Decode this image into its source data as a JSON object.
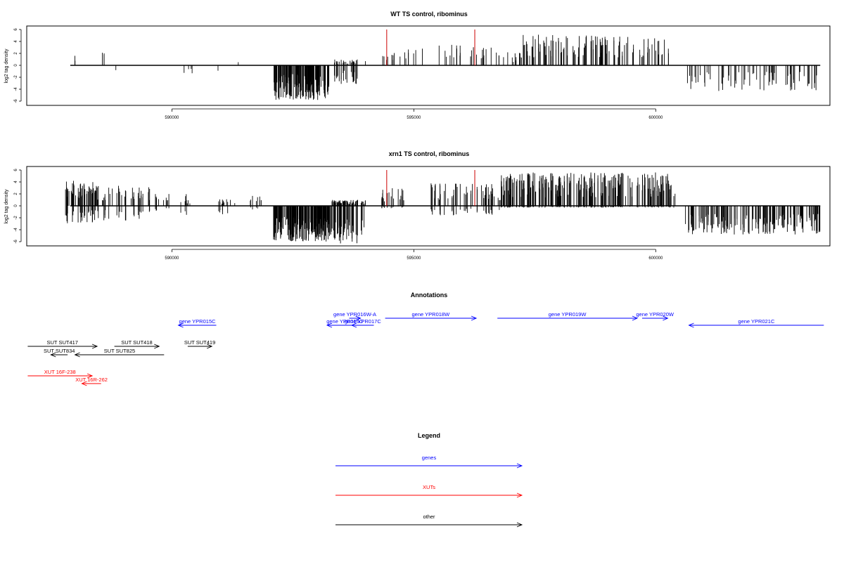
{
  "panels": [
    {
      "title": "WT TS control, ribominus",
      "ylabel": "log2 tag density",
      "yticks": [
        "6",
        "4",
        "2",
        "0",
        "-2",
        "-4",
        "-6"
      ],
      "xticks": [
        "590000",
        "595000",
        "600000"
      ]
    },
    {
      "title": "xrn1 TS control, ribominus",
      "ylabel": "log2 tag density",
      "yticks": [
        "6",
        "4",
        "2",
        "0",
        "-2",
        "-4",
        "-6"
      ],
      "xticks": [
        "590000",
        "595000",
        "600000"
      ]
    }
  ],
  "annotations": {
    "title": "Annotations",
    "features": [
      {
        "label": "gene YPR015C",
        "start": 590280,
        "end": 591050,
        "strand": "-",
        "kind": "gene"
      },
      {
        "label": "gene YPR016C",
        "start": 593300,
        "end": 594020,
        "strand": "-",
        "kind": "gene"
      },
      {
        "label": "gene YPR016W-A",
        "start": 593750,
        "end": 593980,
        "strand": "+",
        "kind": "gene"
      },
      {
        "label": "gene YPR017C",
        "start": 593800,
        "end": 594250,
        "strand": "-",
        "kind": "gene"
      },
      {
        "label": "gene YPR018W",
        "start": 594480,
        "end": 596330,
        "strand": "+",
        "kind": "gene"
      },
      {
        "label": "gene YPR019W",
        "start": 596760,
        "end": 599600,
        "strand": "+",
        "kind": "gene"
      },
      {
        "label": "gene YPR020W",
        "start": 599700,
        "end": 600220,
        "strand": "+",
        "kind": "gene"
      },
      {
        "label": "gene YPR021C",
        "start": 600650,
        "end": 603390,
        "strand": "-",
        "kind": "gene"
      },
      {
        "label": "SUT SUT417",
        "start": 587220,
        "end": 588630,
        "strand": "+",
        "kind": "other"
      },
      {
        "label": "SUT SUT418",
        "start": 588980,
        "end": 589890,
        "strand": "+",
        "kind": "other"
      },
      {
        "label": "SUT SUT834",
        "start": 587690,
        "end": 588030,
        "strand": "-",
        "kind": "other"
      },
      {
        "label": "SUT SUT825",
        "start": 588180,
        "end": 589990,
        "strand": "-",
        "kind": "other"
      },
      {
        "label": "SUT SUT419",
        "start": 590470,
        "end": 590960,
        "strand": "+",
        "kind": "other"
      },
      {
        "label": "XUT 16F-238",
        "start": 587220,
        "end": 588530,
        "strand": "+",
        "kind": "xut"
      },
      {
        "label": "XUT 16R-262",
        "start": 588320,
        "end": 588710,
        "strand": "-",
        "kind": "xut"
      }
    ]
  },
  "legend": {
    "title": "Legend",
    "items": [
      {
        "label": "genes",
        "color": "#0000ff"
      },
      {
        "label": "XUTs",
        "color": "#ff0000"
      },
      {
        "label": "other",
        "color": "#000000"
      }
    ]
  },
  "colors": {
    "gene": "#0000ff",
    "xut": "#ff0000",
    "other": "#000000",
    "peak": "#cc0000"
  },
  "chart_data": [
    {
      "type": "bar",
      "title": "WT TS control, ribominus",
      "xlabel": "",
      "ylabel": "log2 tag density",
      "xlim": [
        587200,
        603400
      ],
      "ylim": [
        -6,
        6
      ],
      "grid": false,
      "peaks": [
        {
          "x": 594440,
          "y": 6
        },
        {
          "x": 596260,
          "y": 6
        }
      ],
      "series": [
        {
          "x_start": 587900,
          "x_end": 588050,
          "max": 1.6,
          "min": 0,
          "density": 2
        },
        {
          "x_start": 588550,
          "x_end": 588620,
          "max": 2.3,
          "min": 0,
          "density": 3
        },
        {
          "x_start": 588820,
          "x_end": 588850,
          "max": 0,
          "min": -1.6,
          "density": 1
        },
        {
          "x_start": 590200,
          "x_end": 590450,
          "max": 0,
          "min": -1.5,
          "density": 4
        },
        {
          "x_start": 590950,
          "x_end": 590980,
          "max": 0,
          "min": -1.5,
          "density": 1
        },
        {
          "x_start": 591350,
          "x_end": 591380,
          "max": 1.0,
          "min": 0,
          "density": 1
        },
        {
          "x_start": 592100,
          "x_end": 593250,
          "max": 0,
          "min": -5.8,
          "density": 180
        },
        {
          "x_start": 593350,
          "x_end": 593850,
          "max": 1.0,
          "min": -3.2,
          "density": 30
        },
        {
          "x_start": 594000,
          "x_end": 594020,
          "max": 1.0,
          "min": 0,
          "density": 1
        },
        {
          "x_start": 594350,
          "x_end": 594600,
          "max": 3.0,
          "min": 0,
          "density": 8
        },
        {
          "x_start": 594700,
          "x_end": 595300,
          "max": 3.0,
          "min": 0,
          "density": 8
        },
        {
          "x_start": 595500,
          "x_end": 596600,
          "max": 3.6,
          "min": 0,
          "density": 22
        },
        {
          "x_start": 596700,
          "x_end": 597200,
          "max": 2.2,
          "min": 0,
          "density": 12
        },
        {
          "x_start": 597200,
          "x_end": 599500,
          "max": 5.2,
          "min": 0,
          "density": 95
        },
        {
          "x_start": 599500,
          "x_end": 600350,
          "max": 4.6,
          "min": 0,
          "density": 25
        },
        {
          "x_start": 600600,
          "x_end": 603400,
          "max": 0,
          "min": -4.3,
          "density": 70
        }
      ]
    },
    {
      "type": "bar",
      "title": "xrn1 TS control, ribominus",
      "xlabel": "",
      "ylabel": "log2 tag density",
      "xlim": [
        587200,
        603400
      ],
      "ylim": [
        -6,
        6
      ],
      "grid": false,
      "peaks": [
        {
          "x": 594440,
          "y": 6
        },
        {
          "x": 596260,
          "y": 6
        }
      ],
      "series": [
        {
          "x_start": 587800,
          "x_end": 588400,
          "max": 4.3,
          "min": -3.0,
          "density": 45
        },
        {
          "x_start": 588400,
          "x_end": 589600,
          "max": 3.5,
          "min": -2.6,
          "density": 45
        },
        {
          "x_start": 589600,
          "x_end": 590300,
          "max": 2.0,
          "min": -1.2,
          "density": 14
        },
        {
          "x_start": 590300,
          "x_end": 591300,
          "max": 1.2,
          "min": -1.8,
          "density": 16
        },
        {
          "x_start": 591600,
          "x_end": 591900,
          "max": 1.8,
          "min": -0.6,
          "density": 8
        },
        {
          "x_start": 592100,
          "x_end": 593300,
          "max": 0,
          "min": -6.0,
          "density": 220
        },
        {
          "x_start": 593300,
          "x_end": 594000,
          "max": 1.0,
          "min": -6.3,
          "density": 70
        },
        {
          "x_start": 594300,
          "x_end": 594800,
          "max": 3.0,
          "min": -0.4,
          "density": 18
        },
        {
          "x_start": 595300,
          "x_end": 596800,
          "max": 3.8,
          "min": -1.6,
          "density": 55
        },
        {
          "x_start": 596800,
          "x_end": 600400,
          "max": 5.6,
          "min": -0.3,
          "density": 260
        },
        {
          "x_start": 600600,
          "x_end": 603400,
          "max": 0,
          "min": -4.8,
          "density": 180
        }
      ]
    }
  ]
}
